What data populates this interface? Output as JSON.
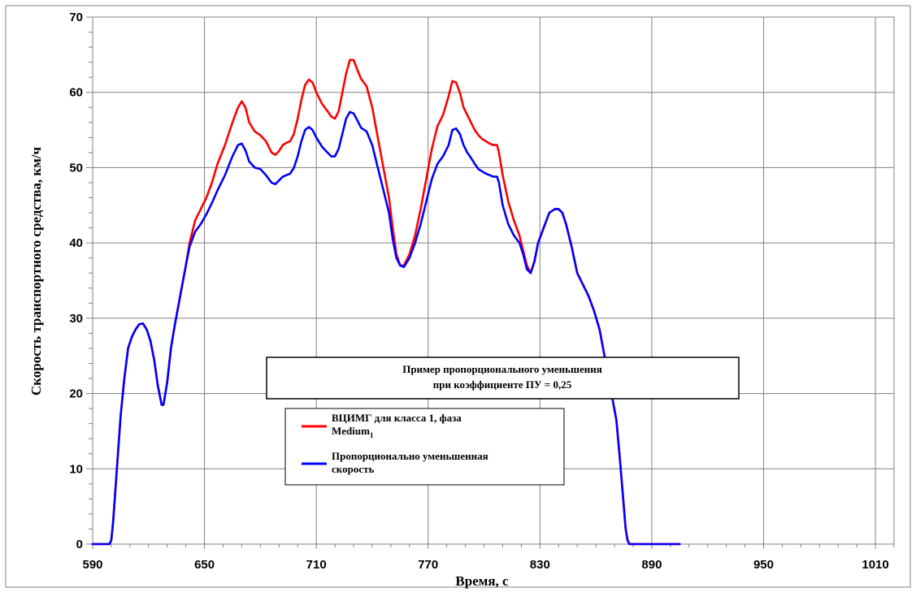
{
  "chart_data": {
    "type": "line",
    "xlabel": "Время, с",
    "ylabel": "Скорость транспортного средства, км/ч",
    "xlim": [
      590,
      1020
    ],
    "ylim": [
      0,
      70
    ],
    "x_ticks": [
      "590",
      "650",
      "710",
      "770",
      "830",
      "890",
      "950",
      "1010"
    ],
    "y_ticks": [
      "0",
      "10",
      "20",
      "30",
      "40",
      "50",
      "60",
      "70"
    ],
    "grid": true,
    "annotation": {
      "line1": "Пример пропорционального уменьшения",
      "line2": "при коэффициенте ПУ = 0,25"
    },
    "legend": [
      {
        "label_main": "ВЦИМГ для класса 1, фаза",
        "label_line2": "Medium",
        "label_sub": "1",
        "color": "#ff0000"
      },
      {
        "label_main": "Пропорционально уменьшенная",
        "label_line2": "скорость",
        "color": "#0000ff"
      }
    ],
    "series": [
      {
        "name": "ВЦИМГ для класса 1, фаза Medium1",
        "color": "#ff0000",
        "points": [
          [
            590,
            0
          ],
          [
            599,
            0
          ],
          [
            600,
            0.5
          ],
          [
            601,
            3
          ],
          [
            603,
            10
          ],
          [
            605,
            17
          ],
          [
            607,
            22
          ],
          [
            609,
            26
          ],
          [
            611,
            27.5
          ],
          [
            613,
            28.5
          ],
          [
            615,
            29.2
          ],
          [
            617,
            29.3
          ],
          [
            619,
            28.5
          ],
          [
            621,
            27
          ],
          [
            623,
            24.5
          ],
          [
            625,
            21
          ],
          [
            627,
            18.5
          ],
          [
            628,
            18.5
          ],
          [
            630,
            21.5
          ],
          [
            632,
            26
          ],
          [
            634,
            29
          ],
          [
            637,
            33
          ],
          [
            640,
            37
          ],
          [
            642,
            40
          ],
          [
            645,
            43
          ],
          [
            648,
            44.5
          ],
          [
            651,
            46
          ],
          [
            654,
            48
          ],
          [
            657,
            50.5
          ],
          [
            661,
            53
          ],
          [
            665,
            56
          ],
          [
            668,
            58
          ],
          [
            670,
            58.8
          ],
          [
            672,
            58
          ],
          [
            674,
            56
          ],
          [
            677,
            54.8
          ],
          [
            680,
            54.3
          ],
          [
            683,
            53.5
          ],
          [
            686,
            52
          ],
          [
            688,
            51.7
          ],
          [
            690,
            52.2
          ],
          [
            692,
            53
          ],
          [
            694,
            53.3
          ],
          [
            696,
            53.5
          ],
          [
            698,
            54.5
          ],
          [
            700,
            56.5
          ],
          [
            702,
            59
          ],
          [
            704,
            61
          ],
          [
            706,
            61.7
          ],
          [
            708,
            61.3
          ],
          [
            710,
            60
          ],
          [
            713,
            58.5
          ],
          [
            716,
            57.5
          ],
          [
            718,
            56.8
          ],
          [
            720,
            56.5
          ],
          [
            722,
            57.5
          ],
          [
            724,
            60
          ],
          [
            726,
            62.5
          ],
          [
            728,
            64.3
          ],
          [
            730,
            64.3
          ],
          [
            732,
            63
          ],
          [
            734,
            61.8
          ],
          [
            737,
            60.8
          ],
          [
            740,
            58
          ],
          [
            743,
            54
          ],
          [
            746,
            50
          ],
          [
            749,
            46
          ],
          [
            751,
            42
          ],
          [
            753,
            38.5
          ],
          [
            755,
            37
          ],
          [
            757,
            37
          ],
          [
            760,
            38.5
          ],
          [
            763,
            41
          ],
          [
            766,
            44.5
          ],
          [
            769,
            48.5
          ],
          [
            772,
            52.5
          ],
          [
            775,
            55.5
          ],
          [
            778,
            57
          ],
          [
            781,
            59.5
          ],
          [
            783,
            61.5
          ],
          [
            785,
            61.3
          ],
          [
            787,
            60
          ],
          [
            789,
            58
          ],
          [
            791,
            57
          ],
          [
            793,
            56
          ],
          [
            795,
            55
          ],
          [
            797,
            54.3
          ],
          [
            799,
            53.8
          ],
          [
            801,
            53.5
          ],
          [
            803,
            53.2
          ],
          [
            805,
            53
          ],
          [
            807,
            53
          ],
          [
            808,
            52
          ],
          [
            810,
            49
          ],
          [
            813,
            45.5
          ],
          [
            816,
            43
          ],
          [
            819,
            41
          ],
          [
            821,
            39
          ],
          [
            823,
            37
          ],
          [
            825,
            36
          ],
          [
            827,
            37.5
          ],
          [
            829,
            40
          ],
          [
            832,
            42
          ],
          [
            835,
            44
          ],
          [
            838,
            44.5
          ],
          [
            840,
            44.5
          ],
          [
            842,
            44
          ],
          [
            844,
            42.5
          ],
          [
            847,
            39.5
          ],
          [
            850,
            36
          ],
          [
            853,
            34.5
          ],
          [
            856,
            33
          ],
          [
            859,
            31
          ],
          [
            862,
            28.5
          ],
          [
            865,
            24.5
          ],
          [
            868,
            20.5
          ],
          [
            871,
            16.5
          ],
          [
            873,
            11
          ],
          [
            875,
            5
          ],
          [
            876,
            2
          ],
          [
            877,
            0.5
          ],
          [
            878,
            0
          ],
          [
            905,
            0
          ]
        ]
      },
      {
        "name": "Пропорционально уменьшенная скорость",
        "color": "#0000ff",
        "points": [
          [
            590,
            0
          ],
          [
            599,
            0
          ],
          [
            600,
            0.5
          ],
          [
            601,
            3
          ],
          [
            603,
            10
          ],
          [
            605,
            17
          ],
          [
            607,
            22
          ],
          [
            609,
            26
          ],
          [
            611,
            27.5
          ],
          [
            613,
            28.5
          ],
          [
            615,
            29.2
          ],
          [
            617,
            29.3
          ],
          [
            619,
            28.5
          ],
          [
            621,
            27
          ],
          [
            623,
            24.5
          ],
          [
            625,
            21
          ],
          [
            627,
            18.5
          ],
          [
            628,
            18.5
          ],
          [
            630,
            21.5
          ],
          [
            632,
            26
          ],
          [
            634,
            29
          ],
          [
            637,
            33
          ],
          [
            640,
            37
          ],
          [
            642,
            39.5
          ],
          [
            645,
            41.5
          ],
          [
            648,
            42.5
          ],
          [
            651,
            43.8
          ],
          [
            654,
            45.3
          ],
          [
            657,
            47
          ],
          [
            661,
            49
          ],
          [
            665,
            51.5
          ],
          [
            668,
            53
          ],
          [
            670,
            53.2
          ],
          [
            672,
            52.3
          ],
          [
            674,
            50.8
          ],
          [
            677,
            50
          ],
          [
            680,
            49.8
          ],
          [
            683,
            49
          ],
          [
            686,
            48
          ],
          [
            688,
            47.8
          ],
          [
            690,
            48.3
          ],
          [
            692,
            48.8
          ],
          [
            694,
            49
          ],
          [
            696,
            49.2
          ],
          [
            698,
            50
          ],
          [
            700,
            51.5
          ],
          [
            702,
            53.5
          ],
          [
            704,
            55
          ],
          [
            706,
            55.4
          ],
          [
            708,
            55
          ],
          [
            710,
            54
          ],
          [
            713,
            52.8
          ],
          [
            716,
            52
          ],
          [
            718,
            51.5
          ],
          [
            720,
            51.5
          ],
          [
            722,
            52.5
          ],
          [
            724,
            54.5
          ],
          [
            726,
            56.5
          ],
          [
            728,
            57.4
          ],
          [
            730,
            57.2
          ],
          [
            732,
            56.3
          ],
          [
            734,
            55.3
          ],
          [
            737,
            54.8
          ],
          [
            740,
            53
          ],
          [
            743,
            50
          ],
          [
            746,
            47
          ],
          [
            749,
            44
          ],
          [
            751,
            40.5
          ],
          [
            753,
            38
          ],
          [
            755,
            37
          ],
          [
            757,
            36.8
          ],
          [
            760,
            38
          ],
          [
            763,
            40
          ],
          [
            766,
            42.5
          ],
          [
            769,
            45.5
          ],
          [
            772,
            48.5
          ],
          [
            775,
            50.5
          ],
          [
            778,
            51.5
          ],
          [
            781,
            53
          ],
          [
            783,
            55
          ],
          [
            785,
            55.2
          ],
          [
            787,
            54.5
          ],
          [
            789,
            53
          ],
          [
            791,
            52
          ],
          [
            793,
            51.3
          ],
          [
            795,
            50.5
          ],
          [
            797,
            49.8
          ],
          [
            799,
            49.5
          ],
          [
            801,
            49.2
          ],
          [
            803,
            49
          ],
          [
            805,
            48.8
          ],
          [
            807,
            48.8
          ],
          [
            808,
            48
          ],
          [
            810,
            45
          ],
          [
            813,
            42.5
          ],
          [
            816,
            41
          ],
          [
            819,
            40
          ],
          [
            821,
            38.5
          ],
          [
            823,
            36.5
          ],
          [
            825,
            36
          ],
          [
            827,
            37.5
          ],
          [
            829,
            40
          ],
          [
            832,
            42
          ],
          [
            835,
            44
          ],
          [
            838,
            44.5
          ],
          [
            840,
            44.5
          ],
          [
            842,
            44
          ],
          [
            844,
            42.5
          ],
          [
            847,
            39.5
          ],
          [
            850,
            36
          ],
          [
            853,
            34.5
          ],
          [
            856,
            33
          ],
          [
            859,
            31
          ],
          [
            862,
            28.5
          ],
          [
            865,
            24.5
          ],
          [
            868,
            20.5
          ],
          [
            871,
            16.5
          ],
          [
            873,
            11
          ],
          [
            875,
            5
          ],
          [
            876,
            2
          ],
          [
            877,
            0.5
          ],
          [
            878,
            0
          ],
          [
            905,
            0
          ]
        ]
      }
    ]
  }
}
